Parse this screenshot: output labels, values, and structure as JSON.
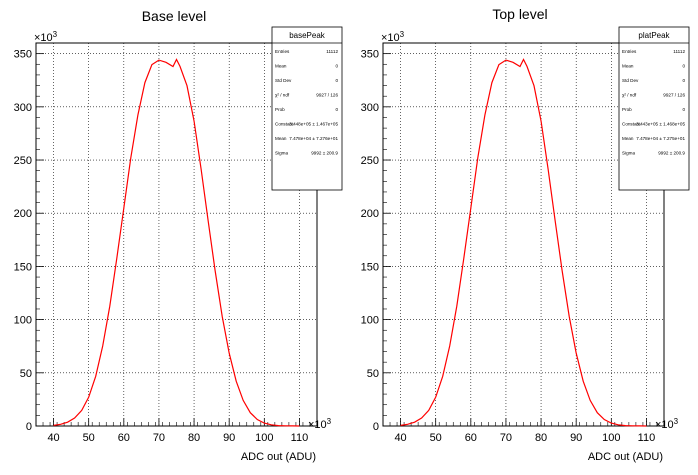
{
  "chart_data": [
    {
      "type": "line",
      "title": "Base level",
      "xlabel": "ADC out (ADU)",
      "x_multiplier": "×10",
      "x_exponent": "3",
      "y_multiplier": "×10",
      "y_exponent": "3",
      "xlim": [
        35,
        115
      ],
      "ylim": [
        0,
        360
      ],
      "xticks": [
        40,
        50,
        60,
        70,
        80,
        90,
        100,
        110
      ],
      "yticks": [
        0,
        50,
        100,
        150,
        200,
        250,
        300,
        350
      ],
      "grid": true,
      "line_color": "#ff0000",
      "series": [
        {
          "x": [
            40,
            42,
            44,
            46,
            48,
            50,
            52,
            54,
            56,
            58,
            60,
            62,
            64,
            66,
            68,
            70,
            72,
            74,
            75,
            76,
            78,
            80,
            82,
            84,
            86,
            88,
            90,
            92,
            94,
            96,
            98,
            100,
            102,
            104,
            106,
            108,
            110
          ],
          "y": [
            0.6,
            1.6,
            3.6,
            7.5,
            14.7,
            27.1,
            46.7,
            75.2,
            112.7,
            157.6,
            204.7,
            252.1,
            292.3,
            322.8,
            339.7,
            343.9,
            341.9,
            337.9,
            344.5,
            338.0,
            319.9,
            286.4,
            241.5,
            193.3,
            146.2,
            103.0,
            68.4,
            42.1,
            24.1,
            12.5,
            6.1,
            2.7,
            1.1,
            0.4,
            0.15,
            0.05,
            0.01
          ]
        }
      ],
      "stats": {
        "name": "basePeak",
        "rows": [
          {
            "label": "Entries",
            "value": "11112"
          },
          {
            "label": "Mean",
            "value": "0"
          },
          {
            "label": "Std Dev",
            "value": "0"
          },
          {
            "label": "χ² / ndf",
            "value": "9927 / 126"
          },
          {
            "label": "Prob",
            "value": "0"
          },
          {
            "label": "Constant",
            "value": "3.448e+05 ± 1.467e+05"
          },
          {
            "label": "Mean",
            "value": "7.478e+04 ± 7.276e+01"
          },
          {
            "label": "Sigma",
            "value": "9992 ± 200.9"
          }
        ]
      }
    },
    {
      "type": "line",
      "title": "Top level",
      "xlabel": "ADC out (ADU)",
      "x_multiplier": "×10",
      "x_exponent": "3",
      "y_multiplier": "×10",
      "y_exponent": "3",
      "xlim": [
        35,
        115
      ],
      "ylim": [
        0,
        360
      ],
      "xticks": [
        40,
        50,
        60,
        70,
        80,
        90,
        100,
        110
      ],
      "yticks": [
        0,
        50,
        100,
        150,
        200,
        250,
        300,
        350
      ],
      "grid": true,
      "line_color": "#ff0000",
      "series": [
        {
          "x": [
            40,
            42,
            44,
            46,
            48,
            50,
            52,
            54,
            56,
            58,
            60,
            62,
            64,
            66,
            68,
            70,
            72,
            74,
            75,
            76,
            78,
            80,
            82,
            84,
            86,
            88,
            90,
            92,
            94,
            96,
            98,
            100,
            102,
            104,
            106,
            108,
            110
          ],
          "y": [
            0.6,
            1.6,
            3.6,
            7.5,
            14.7,
            27.1,
            46.7,
            75.2,
            112.7,
            157.6,
            204.7,
            252.1,
            292.3,
            322.8,
            339.7,
            343.9,
            341.9,
            337.9,
            344.5,
            338.0,
            319.9,
            286.4,
            241.5,
            193.3,
            146.2,
            103.0,
            68.4,
            42.1,
            24.1,
            12.5,
            6.1,
            2.7,
            1.1,
            0.4,
            0.15,
            0.05,
            0.01
          ]
        }
      ],
      "stats": {
        "name": "platPeak",
        "rows": [
          {
            "label": "Entries",
            "value": "11112"
          },
          {
            "label": "Mean",
            "value": "0"
          },
          {
            "label": "Std Dev",
            "value": "0"
          },
          {
            "label": "χ² / ndf",
            "value": "9927 / 126"
          },
          {
            "label": "Prob",
            "value": "0"
          },
          {
            "label": "Constant",
            "value": "3.443e+05 ± 1.468e+05"
          },
          {
            "label": "Mean",
            "value": "7.478e+04 ± 7.275e+01"
          },
          {
            "label": "Sigma",
            "value": "9992 ± 200.9"
          }
        ]
      }
    }
  ]
}
